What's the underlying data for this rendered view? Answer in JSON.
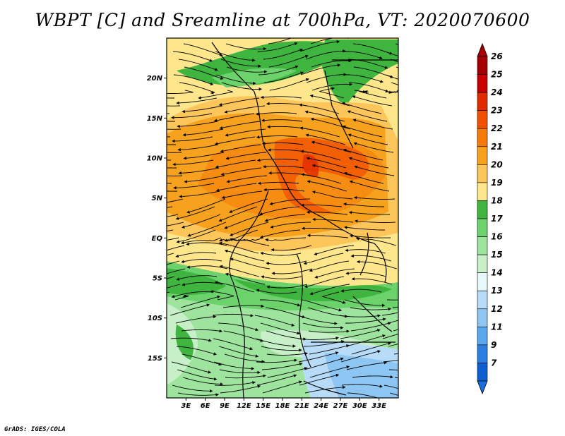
{
  "title": "WBPT [C] and Sreamline at 700hPa, VT: 2020070600",
  "footer": "GrADS: IGES/COLA",
  "map": {
    "lon_range": [
      0,
      36
    ],
    "lat_range": [
      -20,
      25
    ],
    "lat_ticks": [
      {
        "value": 20,
        "label": "20N"
      },
      {
        "value": 15,
        "label": "15N"
      },
      {
        "value": 10,
        "label": "10N"
      },
      {
        "value": 5,
        "label": "5N"
      },
      {
        "value": 0,
        "label": "EQ"
      },
      {
        "value": -5,
        "label": "5S"
      },
      {
        "value": -10,
        "label": "10S"
      },
      {
        "value": -15,
        "label": "15S"
      }
    ],
    "lon_ticks": [
      {
        "value": 3,
        "label": "3E"
      },
      {
        "value": 6,
        "label": "6E"
      },
      {
        "value": 9,
        "label": "9E"
      },
      {
        "value": 12,
        "label": "12E"
      },
      {
        "value": 15,
        "label": "15E"
      },
      {
        "value": 18,
        "label": "18E"
      },
      {
        "value": 21,
        "label": "21E"
      },
      {
        "value": 24,
        "label": "24E"
      },
      {
        "value": 27,
        "label": "27E"
      },
      {
        "value": 30,
        "label": "30E"
      },
      {
        "value": 33,
        "label": "33E"
      }
    ]
  },
  "colorbar": {
    "levels": [
      {
        "label": "26",
        "color": "#a50000"
      },
      {
        "label": "25",
        "color": "#c80000"
      },
      {
        "label": "24",
        "color": "#e02a00"
      },
      {
        "label": "23",
        "color": "#f05000"
      },
      {
        "label": "22",
        "color": "#f57a0a"
      },
      {
        "label": "21",
        "color": "#f7a21e"
      },
      {
        "label": "20",
        "color": "#fcc65a"
      },
      {
        "label": "19",
        "color": "#fde68c"
      },
      {
        "label": "18",
        "color": "#3fb53f"
      },
      {
        "label": "17",
        "color": "#6cd26c"
      },
      {
        "label": "16",
        "color": "#9ee49e"
      },
      {
        "label": "15",
        "color": "#c8f0c8"
      },
      {
        "label": "14",
        "color": "#e8f8fa"
      },
      {
        "label": "13",
        "color": "#b8dcf8"
      },
      {
        "label": "12",
        "color": "#8ec6f3"
      },
      {
        "label": "11",
        "color": "#5aa8ec"
      },
      {
        "label": "9",
        "color": "#2a7fe0"
      },
      {
        "label": "7",
        "color": "#0d5fd1"
      }
    ],
    "top_color": "#a50000",
    "bottom_color": "#1a6fde"
  }
}
